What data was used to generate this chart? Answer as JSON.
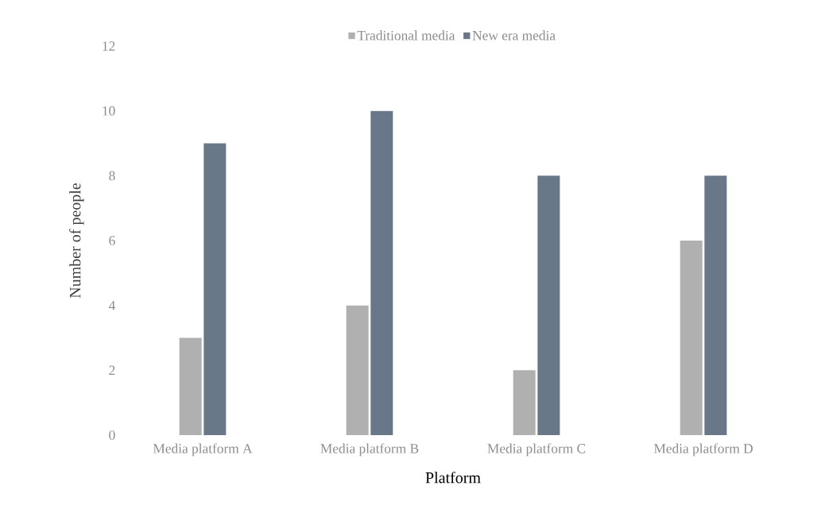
{
  "chart_data": {
    "type": "bar",
    "xlabel": "Platform",
    "ylabel": "Number of people",
    "categories": [
      "Media platform A",
      "Media platform B",
      "Media platform C",
      "Media platform D"
    ],
    "series": [
      {
        "name": "Traditional media",
        "color": "#b0b0b0",
        "values": [
          3,
          4,
          2,
          6
        ]
      },
      {
        "name": "New era media",
        "color": "#687888",
        "values": [
          9,
          10,
          8,
          8
        ]
      }
    ],
    "ylim": [
      0,
      12
    ],
    "yticks": [
      0,
      2,
      4,
      6,
      8,
      10,
      12
    ],
    "grid": false,
    "legend": "top"
  }
}
